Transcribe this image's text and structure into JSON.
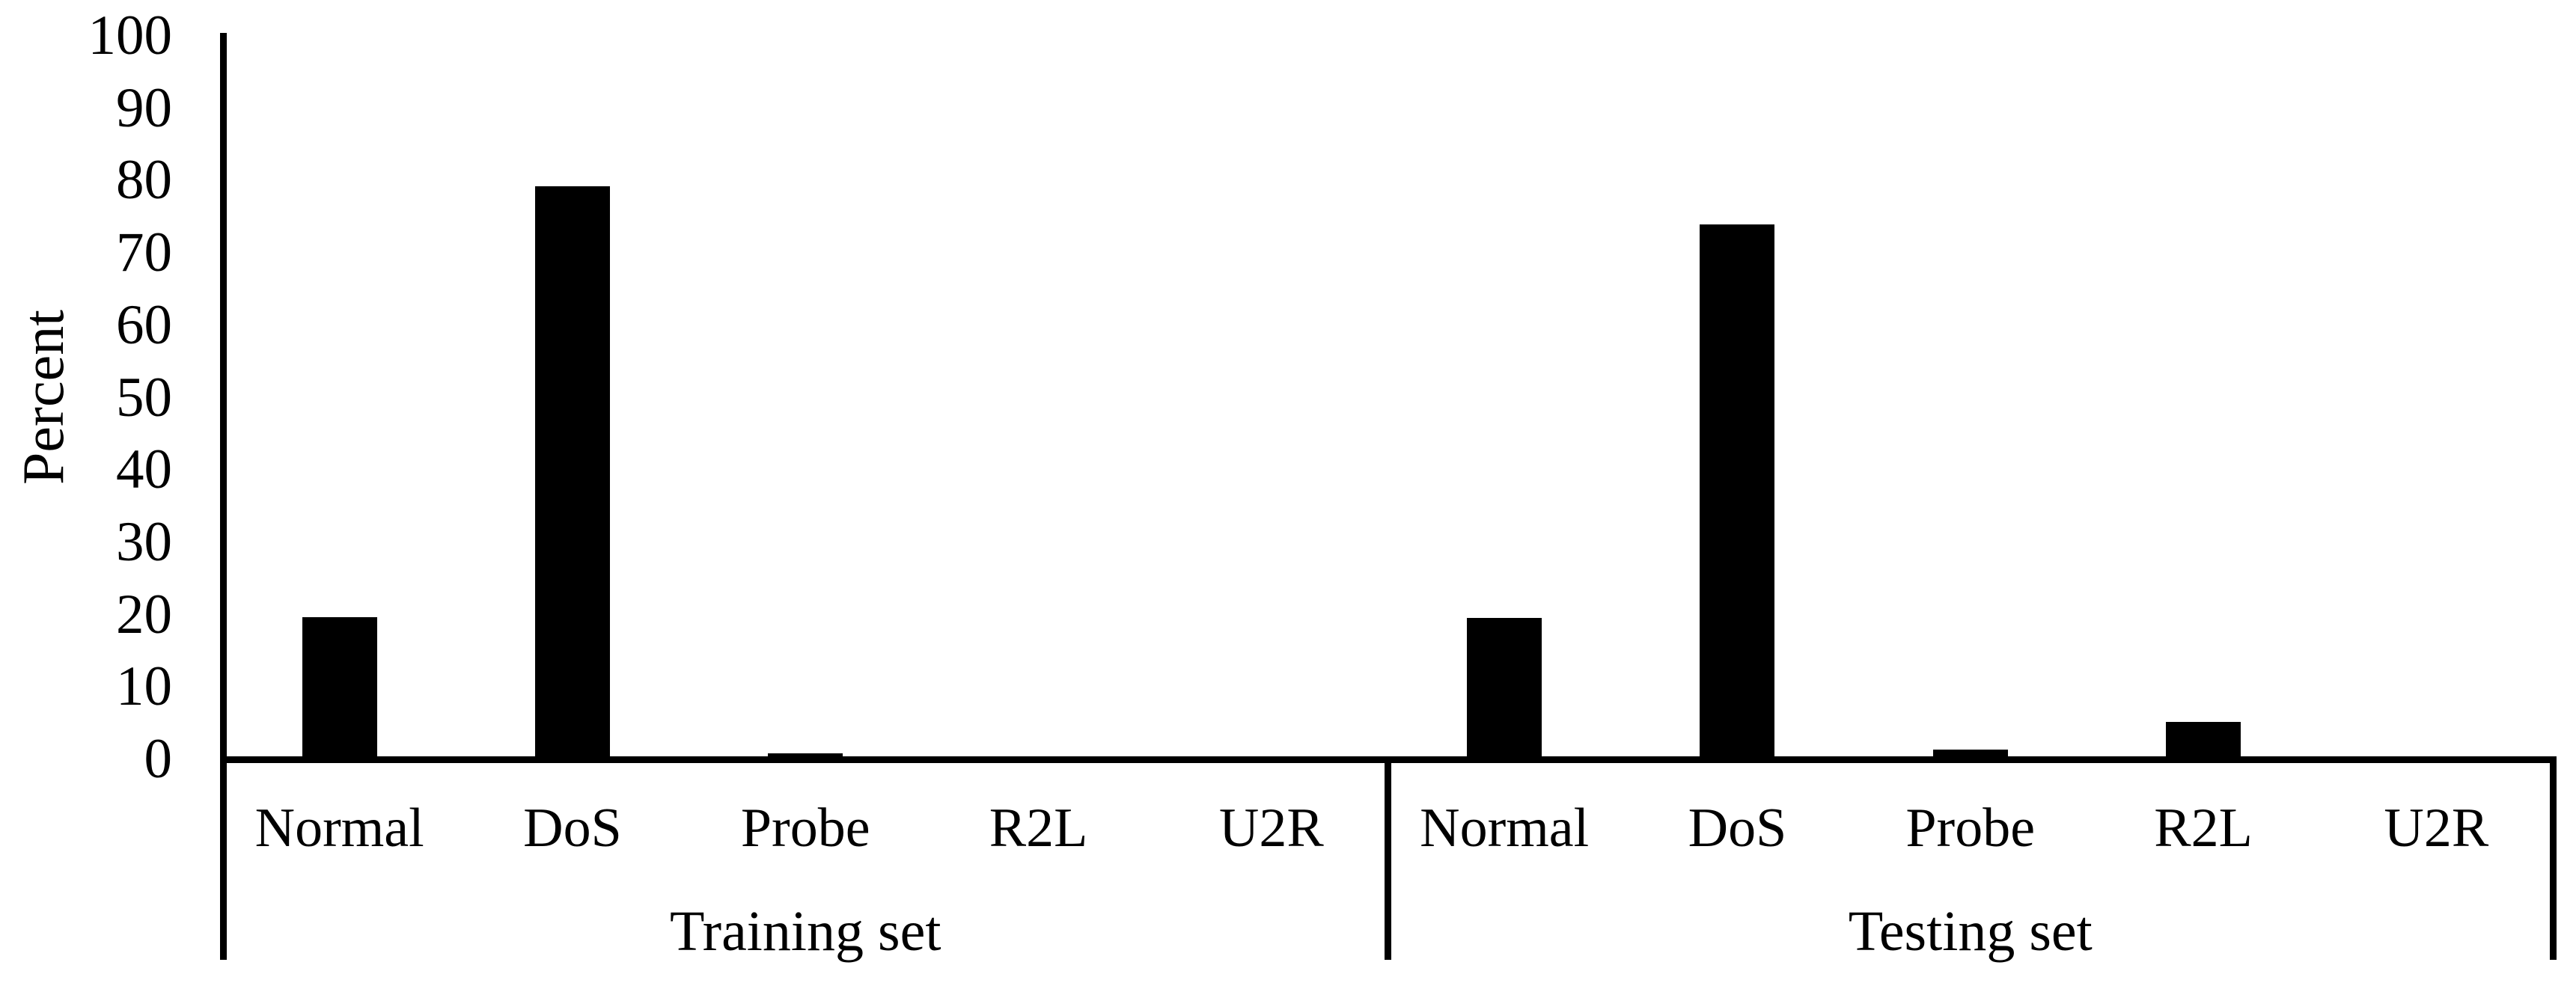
{
  "page": {
    "background_color": "#ffffff",
    "text_color": "#000000"
  },
  "chart_data": {
    "type": "bar",
    "title": "",
    "ylabel": "Percent",
    "xlabel": "",
    "ylim": [
      0,
      100
    ],
    "yticks": [
      0,
      10,
      20,
      30,
      40,
      50,
      60,
      70,
      80,
      90,
      100
    ],
    "grid": false,
    "legend": "none",
    "bar_color": "#000000",
    "axis_color": "#000000",
    "categories": [
      "Normal",
      "DoS",
      "Probe",
      "R2L",
      "U2R"
    ],
    "groups": [
      {
        "label": "Training set",
        "values": [
          19.7,
          79.2,
          0.8,
          0.2,
          0.0
        ]
      },
      {
        "label": "Testing set",
        "values": [
          19.5,
          73.9,
          1.3,
          5.2,
          0.1
        ]
      }
    ]
  }
}
